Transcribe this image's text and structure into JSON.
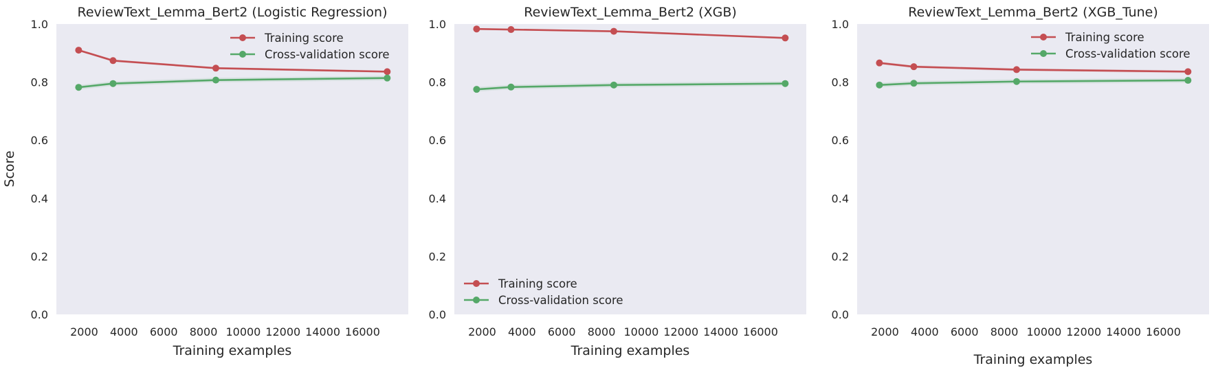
{
  "figure": {
    "ylabel": "Score",
    "xlabel": "Training examples"
  },
  "chart_data": [
    {
      "type": "line",
      "title": "ReviewText_Lemma_Bert2 (Logistic Regression)",
      "xlabel": "Training examples",
      "ylabel": "Score",
      "xlim": [
        600,
        18300
      ],
      "ylim": [
        0.0,
        1.0
      ],
      "xticks": [
        2000,
        4000,
        6000,
        8000,
        10000,
        12000,
        14000,
        16000
      ],
      "yticks": [
        0.0,
        0.2,
        0.4,
        0.6,
        0.8,
        1.0
      ],
      "grid": false,
      "legend_position": "upper right",
      "x": [
        1720,
        3450,
        8620,
        17240
      ],
      "series": [
        {
          "name": "Training score",
          "color": "#c44e52",
          "values": [
            0.91,
            0.874,
            0.848,
            0.836
          ],
          "band": 0.004
        },
        {
          "name": "Cross-validation score",
          "color": "#55a868",
          "values": [
            0.782,
            0.795,
            0.807,
            0.814
          ],
          "band": 0.008
        }
      ]
    },
    {
      "type": "line",
      "title": "ReviewText_Lemma_Bert2 (XGB)",
      "xlabel": "Training examples",
      "ylabel": "",
      "xlim": [
        600,
        18300
      ],
      "ylim": [
        0.0,
        1.0
      ],
      "xticks": [
        2000,
        4000,
        6000,
        8000,
        10000,
        12000,
        14000,
        16000
      ],
      "yticks": [
        0.0,
        0.2,
        0.4,
        0.6,
        0.8,
        1.0
      ],
      "grid": false,
      "legend_position": "lower left",
      "x": [
        1720,
        3450,
        8620,
        17240
      ],
      "series": [
        {
          "name": "Training score",
          "color": "#c44e52",
          "values": [
            0.983,
            0.981,
            0.975,
            0.952
          ],
          "band": 0.003
        },
        {
          "name": "Cross-validation score",
          "color": "#55a868",
          "values": [
            0.775,
            0.783,
            0.79,
            0.795
          ],
          "band": 0.008
        }
      ]
    },
    {
      "type": "line",
      "title": "ReviewText_Lemma_Bert2 (XGB_Tune)",
      "xlabel": "Training examples",
      "ylabel": "",
      "xlim": [
        600,
        18300
      ],
      "ylim": [
        0.0,
        1.0
      ],
      "xticks": [
        2000,
        4000,
        6000,
        8000,
        10000,
        12000,
        14000,
        16000
      ],
      "yticks": [
        0.0,
        0.2,
        0.4,
        0.6,
        0.8,
        1.0
      ],
      "grid": false,
      "legend_position": "upper right",
      "x": [
        1720,
        3450,
        8620,
        17240
      ],
      "series": [
        {
          "name": "Training score",
          "color": "#c44e52",
          "values": [
            0.866,
            0.853,
            0.843,
            0.836
          ],
          "band": 0.005
        },
        {
          "name": "Cross-validation score",
          "color": "#55a868",
          "values": [
            0.79,
            0.796,
            0.802,
            0.806
          ],
          "band": 0.008
        }
      ]
    }
  ],
  "colors": {
    "plot_background": "#eaeaf2",
    "training": "#c44e52",
    "cross_validation": "#55a868"
  }
}
